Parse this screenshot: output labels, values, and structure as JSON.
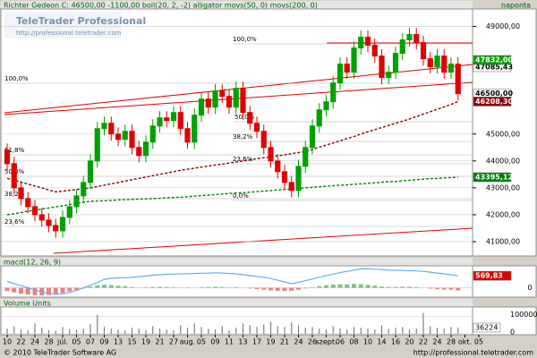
{
  "chart_data": [
    {
      "type": "candlestick",
      "title": "Richter Gedeon C: 46500,00 -1100,00 boll(20, 2, -2) alligator movs(50, 0) movs(200, 0)",
      "period": "naponta",
      "categories": [
        "10",
        null,
        "22",
        null,
        "24",
        null,
        "28",
        null,
        "júl.",
        null,
        "05",
        null,
        "07",
        null,
        "09",
        null,
        "13",
        null,
        "15",
        null,
        "19",
        null,
        "21",
        null,
        "27",
        null,
        "aug.",
        null,
        "05",
        null,
        "09",
        null,
        "11",
        null,
        "13",
        null,
        "17",
        null,
        "19",
        null,
        "21",
        null,
        "24",
        null,
        "26",
        null,
        "szept.",
        null,
        "06",
        null,
        "08",
        null,
        "10",
        null,
        "14",
        null,
        "16",
        null,
        "20",
        null,
        "22",
        null,
        "24",
        null,
        "28",
        null,
        "okt.",
        null,
        "05"
      ],
      "ylim": [
        40500,
        49650
      ],
      "yticks": [
        {
          "value": 41000,
          "label": "41000,00"
        },
        {
          "value": 42000,
          "label": "42000,00"
        },
        {
          "value": 43000,
          "label": "43000,00"
        },
        {
          "value": 44000,
          "label": "44000,00"
        },
        {
          "value": 45000,
          "label": "45000,00"
        },
        {
          "value": 49000,
          "label": "49000,00"
        }
      ],
      "grid": true,
      "candles": {
        "up_color": "#00a000",
        "down_color": "#e00000",
        "open": [
          44400,
          43900,
          43000,
          42600,
          42300,
          42000,
          41800,
          41600,
          41400,
          41900,
          42300,
          42700,
          43200,
          44000,
          45200,
          45400,
          45000,
          44800,
          45100,
          44500,
          44200,
          44700,
          45300,
          45600,
          45500,
          45800,
          45200,
          44700,
          45700,
          46300,
          46000,
          46600,
          46400,
          46000,
          46700,
          45800,
          45400,
          45100,
          44500,
          44000,
          43600,
          43200,
          42900,
          43800,
          44500,
          45300,
          45900,
          46200,
          46900,
          47600,
          47300,
          48200,
          48600,
          48300,
          47900,
          47100,
          47300,
          48000,
          48500,
          48700,
          48400,
          47800,
          47500,
          47900,
          47300,
          47600,
          null,
          null,
          null
        ],
        "high": [
          44650,
          44150,
          43250,
          42850,
          42550,
          42250,
          42050,
          41850,
          42150,
          42550,
          42950,
          43450,
          44250,
          45450,
          45650,
          45650,
          45250,
          45350,
          45350,
          44750,
          44950,
          45550,
          45850,
          45850,
          46050,
          46050,
          45450,
          45950,
          46550,
          46550,
          46850,
          46850,
          46650,
          46950,
          46950,
          46050,
          45650,
          45350,
          44750,
          44250,
          43850,
          43450,
          44050,
          44750,
          45550,
          46150,
          46450,
          47150,
          47850,
          47850,
          48450,
          48850,
          48850,
          48550,
          48150,
          47550,
          48250,
          48750,
          48950,
          48950,
          48650,
          48050,
          48150,
          48150,
          47850,
          47850,
          null,
          null,
          null
        ],
        "low": [
          43650,
          42750,
          42350,
          42050,
          41750,
          41550,
          41350,
          41150,
          41150,
          41650,
          42050,
          42450,
          42950,
          43750,
          44950,
          44750,
          44550,
          44550,
          44250,
          43950,
          43950,
          44450,
          45050,
          45250,
          45250,
          44950,
          44450,
          44450,
          45450,
          45750,
          45750,
          46150,
          45750,
          45750,
          45550,
          45150,
          44850,
          44250,
          43750,
          43350,
          42950,
          42650,
          42650,
          43550,
          44250,
          45050,
          45650,
          45950,
          46650,
          47050,
          47050,
          47950,
          48050,
          47650,
          46850,
          46850,
          47050,
          47750,
          48250,
          48150,
          47550,
          47250,
          47250,
          47050,
          47050,
          46250,
          null,
          null,
          null
        ],
        "values": [
          43900,
          43000,
          42600,
          42300,
          42000,
          41800,
          41600,
          41400,
          41900,
          42300,
          42700,
          43200,
          44000,
          45200,
          45400,
          45000,
          44800,
          45100,
          44500,
          44200,
          44700,
          45300,
          45600,
          45500,
          45800,
          45200,
          44700,
          45700,
          46300,
          46000,
          46600,
          46400,
          46000,
          46700,
          45800,
          45400,
          45100,
          44500,
          44000,
          43600,
          43200,
          42900,
          43800,
          44500,
          45300,
          45900,
          46200,
          46900,
          47600,
          47300,
          48200,
          48600,
          48300,
          47900,
          47100,
          47300,
          48000,
          48500,
          48700,
          48400,
          47800,
          47500,
          47900,
          47300,
          47600,
          46500,
          null,
          null,
          null
        ],
        "value_labels": [
          null,
          null,
          null,
          null,
          null,
          null,
          null,
          null,
          null,
          null,
          null,
          null,
          null,
          null,
          null,
          null,
          null,
          null,
          null,
          null,
          null,
          null,
          null,
          null,
          null,
          null,
          null,
          null,
          null,
          null,
          null,
          null,
          null,
          null,
          null,
          null,
          null,
          null,
          null,
          null,
          null,
          null,
          null,
          null,
          null,
          null,
          null,
          null,
          null,
          null,
          null,
          null,
          null,
          null,
          null,
          null,
          null,
          null,
          null,
          null,
          null,
          null,
          null,
          null,
          null,
          "46500,00",
          null,
          null,
          null
        ]
      },
      "series": [
        {
          "color": "#8b0000",
          "values": [
            43350,
            43280,
            43210,
            43140,
            43070,
            43000,
            42920,
            42850,
            42880,
            42910,
            42940,
            42970,
            43000,
            43050,
            43100,
            43150,
            43200,
            43250,
            43300,
            43350,
            43400,
            43450,
            43500,
            43550,
            43600,
            43650,
            43690,
            43730,
            43770,
            43810,
            43850,
            43880,
            43920,
            43960,
            44000,
            44040,
            44080,
            44120,
            44150,
            44190,
            44230,
            44270,
            44310,
            44350,
            44430,
            44510,
            44590,
            44670,
            44750,
            44830,
            44910,
            45000,
            45080,
            45160,
            45240,
            45320,
            45400,
            45480,
            45560,
            45650,
            45740,
            45830,
            45920,
            46010,
            46100,
            46208.3,
            null,
            null,
            null
          ],
          "value_labels": [
            null,
            null,
            null,
            null,
            null,
            null,
            null,
            null,
            null,
            null,
            null,
            null,
            null,
            null,
            null,
            null,
            null,
            null,
            null,
            null,
            null,
            null,
            null,
            null,
            null,
            null,
            null,
            null,
            null,
            null,
            null,
            null,
            null,
            null,
            null,
            null,
            null,
            null,
            null,
            null,
            null,
            null,
            null,
            null,
            null,
            null,
            null,
            null,
            null,
            null,
            null,
            null,
            null,
            null,
            null,
            null,
            null,
            null,
            null,
            null,
            null,
            null,
            null,
            null,
            null,
            "46208,30",
            null,
            null,
            null
          ]
        },
        {
          "color": "#008000",
          "values": [
            42000,
            42040,
            42080,
            42130,
            42170,
            42210,
            42250,
            42290,
            42330,
            42380,
            42420,
            42460,
            42500,
            42510,
            42520,
            42530,
            42550,
            42560,
            42570,
            42580,
            42590,
            42600,
            42610,
            42630,
            42640,
            42650,
            42670,
            42690,
            42710,
            42730,
            42750,
            42770,
            42790,
            42810,
            42820,
            42840,
            42860,
            42880,
            42900,
            42920,
            42940,
            42960,
            42980,
            43000,
            43020,
            43040,
            43060,
            43080,
            43100,
            43110,
            43130,
            43150,
            43170,
            43190,
            43210,
            43230,
            43240,
            43260,
            43280,
            43300,
            43320,
            43340,
            43350,
            43370,
            43380,
            43395.12,
            null,
            null,
            null
          ],
          "value_labels": [
            null,
            null,
            null,
            null,
            null,
            null,
            null,
            null,
            null,
            null,
            null,
            null,
            null,
            null,
            null,
            null,
            null,
            null,
            null,
            null,
            null,
            null,
            null,
            null,
            null,
            null,
            null,
            null,
            null,
            null,
            null,
            null,
            null,
            null,
            null,
            null,
            null,
            null,
            null,
            null,
            null,
            null,
            null,
            null,
            null,
            null,
            null,
            null,
            null,
            null,
            null,
            null,
            null,
            null,
            null,
            null,
            null,
            null,
            null,
            null,
            null,
            null,
            null,
            null,
            null,
            "43395,12",
            null,
            null,
            null
          ]
        }
      ],
      "extra_labels": [
        "47085,43",
        "47832,00"
      ],
      "fib_labels": [
        "100,0%",
        "50,0%",
        "38,2%",
        "23,6%",
        "0,0%",
        "100,0%",
        "61,8%",
        "50,0%",
        "38,2%",
        "23,6%"
      ]
    },
    {
      "type": "macd",
      "title": "macd(12, 26, 9)",
      "ylim": [
        -400,
        1000
      ],
      "yticks": [
        0
      ],
      "hist_up_color": "#80c080",
      "hist_down_color": "#f08080",
      "line_color": "#60b0f0",
      "histogram": [
        -150,
        -220,
        -280,
        -320,
        -350,
        -360,
        -340,
        -300,
        -250,
        -180,
        -100,
        -30,
        50,
        120,
        150,
        130,
        100,
        80,
        40,
        10,
        20,
        40,
        50,
        40,
        30,
        10,
        -20,
        0,
        30,
        40,
        50,
        40,
        20,
        30,
        0,
        -30,
        -60,
        -90,
        -120,
        -140,
        -150,
        -140,
        -90,
        -30,
        30,
        80,
        120,
        150,
        170,
        160,
        180,
        170,
        140,
        100,
        60,
        40,
        40,
        50,
        50,
        30,
        0,
        -40,
        -60,
        -80,
        -90,
        -120,
        null,
        null,
        null
      ],
      "values": [
        300,
        200,
        100,
        0,
        -100,
        -200,
        -260,
        -300,
        -280,
        -220,
        -120,
        0,
        120,
        250,
        400,
        450,
        470,
        480,
        500,
        530,
        560,
        600,
        620,
        640,
        650,
        660,
        670,
        680,
        690,
        700,
        710,
        700,
        680,
        660,
        620,
        580,
        540,
        500,
        440,
        360,
        280,
        200,
        260,
        340,
        420,
        500,
        580,
        650,
        720,
        780,
        840,
        900,
        900,
        880,
        860,
        840,
        830,
        820,
        810,
        800,
        780,
        740,
        700,
        660,
        620,
        569.83,
        null,
        null,
        null
      ],
      "value_labels": [
        null,
        null,
        null,
        null,
        null,
        null,
        null,
        null,
        null,
        null,
        null,
        null,
        null,
        null,
        null,
        null,
        null,
        null,
        null,
        null,
        null,
        null,
        null,
        null,
        null,
        null,
        null,
        null,
        null,
        null,
        null,
        null,
        null,
        null,
        null,
        null,
        null,
        null,
        null,
        null,
        null,
        null,
        null,
        null,
        null,
        null,
        null,
        null,
        null,
        null,
        null,
        null,
        null,
        null,
        null,
        null,
        null,
        null,
        null,
        null,
        null,
        null,
        null,
        null,
        null,
        "569,83",
        null,
        null,
        null
      ]
    },
    {
      "type": "volume",
      "title": "Volume Units",
      "ylim": [
        0,
        150000
      ],
      "yticks": [
        0,
        100000
      ],
      "color": "#808080",
      "values": [
        30000,
        45000,
        25000,
        20000,
        60000,
        35000,
        22000,
        18000,
        40000,
        28000,
        25000,
        30000,
        55000,
        110000,
        40000,
        30000,
        25000,
        20000,
        35000,
        30000,
        22000,
        45000,
        30000,
        25000,
        20000,
        50000,
        35000,
        60000,
        40000,
        30000,
        25000,
        45000,
        20000,
        35000,
        60000,
        50000,
        40000,
        55000,
        70000,
        45000,
        40000,
        65000,
        50000,
        35000,
        40000,
        30000,
        25000,
        45000,
        30000,
        25000,
        40000,
        35000,
        30000,
        25000,
        50000,
        30000,
        35000,
        40000,
        25000,
        30000,
        120000,
        45000,
        35000,
        30000,
        40000,
        36224,
        null,
        null,
        null
      ]
    }
  ],
  "logo": {
    "title": "TeleTrader Professional",
    "url": "http://professional.teletrader.com"
  },
  "footer": {
    "copyright": "© 2010 TeleTrader Software AG",
    "url": "http://professional.teletrader.com"
  }
}
